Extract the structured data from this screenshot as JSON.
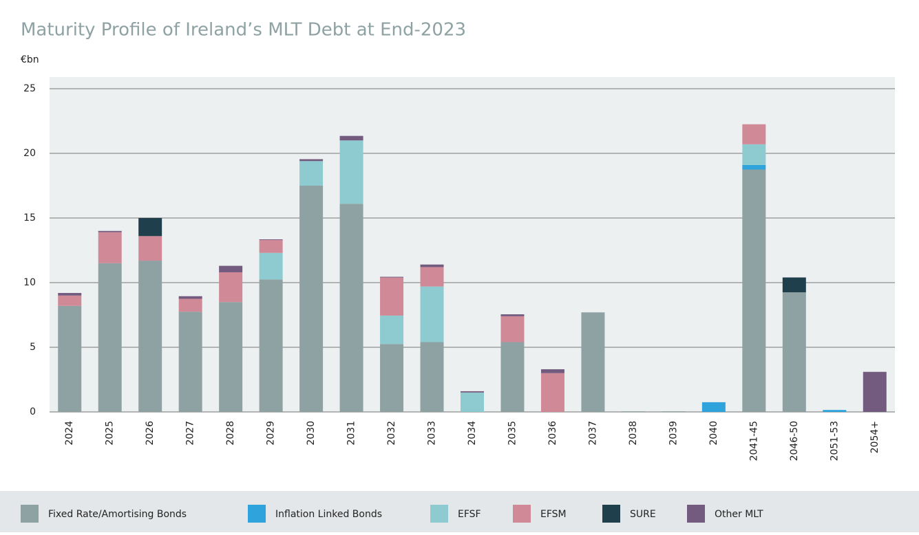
{
  "chart_data": {
    "type": "stacked-bar",
    "title": "Maturity Profile of Ireland’s MLT Debt at End-2023",
    "y_label": "€bn",
    "categories": [
      "2024",
      "2025",
      "2026",
      "2027",
      "2028",
      "2029",
      "2030",
      "2031",
      "2032",
      "2033",
      "2034",
      "2035",
      "2036",
      "2037",
      "2038",
      "2039",
      "2040",
      "2041-45",
      "2046-50",
      "2051-53",
      "2054+"
    ],
    "series": [
      {
        "name": "Fixed Rate/Amortising Bonds",
        "color": "#8fa2a3",
        "values": [
          8.2,
          11.5,
          11.7,
          7.75,
          8.5,
          10.25,
          17.5,
          16.1,
          5.25,
          5.4,
          null,
          5.4,
          null,
          7.7,
          0.05,
          0.05,
          null,
          18.75,
          9.25,
          null,
          null
        ]
      },
      {
        "name": "Inflation Linked Bonds",
        "color": "#2ea3dc",
        "values": [
          null,
          null,
          null,
          null,
          null,
          null,
          null,
          null,
          null,
          null,
          null,
          null,
          null,
          null,
          null,
          null,
          0.75,
          0.35,
          null,
          0.15,
          null
        ]
      },
      {
        "name": "EFSF",
        "color": "#8ecbd0",
        "values": [
          null,
          null,
          null,
          null,
          null,
          2.05,
          1.9,
          4.9,
          2.2,
          4.3,
          1.5,
          null,
          null,
          null,
          null,
          null,
          null,
          1.6,
          null,
          null,
          null
        ]
      },
      {
        "name": "EFSM",
        "color": "#d08a97",
        "values": [
          0.8,
          2.4,
          1.9,
          1.0,
          2.3,
          1.0,
          null,
          null,
          2.95,
          1.5,
          null,
          2.0,
          3.0,
          null,
          null,
          null,
          null,
          1.55,
          null,
          null,
          null
        ]
      },
      {
        "name": "SURE",
        "color": "#1f3f4c",
        "values": [
          null,
          null,
          1.4,
          null,
          null,
          null,
          null,
          null,
          null,
          null,
          null,
          null,
          null,
          null,
          null,
          null,
          null,
          null,
          1.15,
          null,
          null
        ]
      },
      {
        "name": "Other MLT",
        "color": "#735b80",
        "values": [
          0.2,
          0.1,
          null,
          0.2,
          0.5,
          0.05,
          0.15,
          0.35,
          0.05,
          0.2,
          0.1,
          0.15,
          0.3,
          null,
          null,
          null,
          null,
          null,
          null,
          null,
          3.1
        ]
      }
    ],
    "ylim": [
      0,
      25
    ],
    "yticks": [
      0,
      5,
      10,
      15,
      20,
      25
    ],
    "grid": true
  }
}
